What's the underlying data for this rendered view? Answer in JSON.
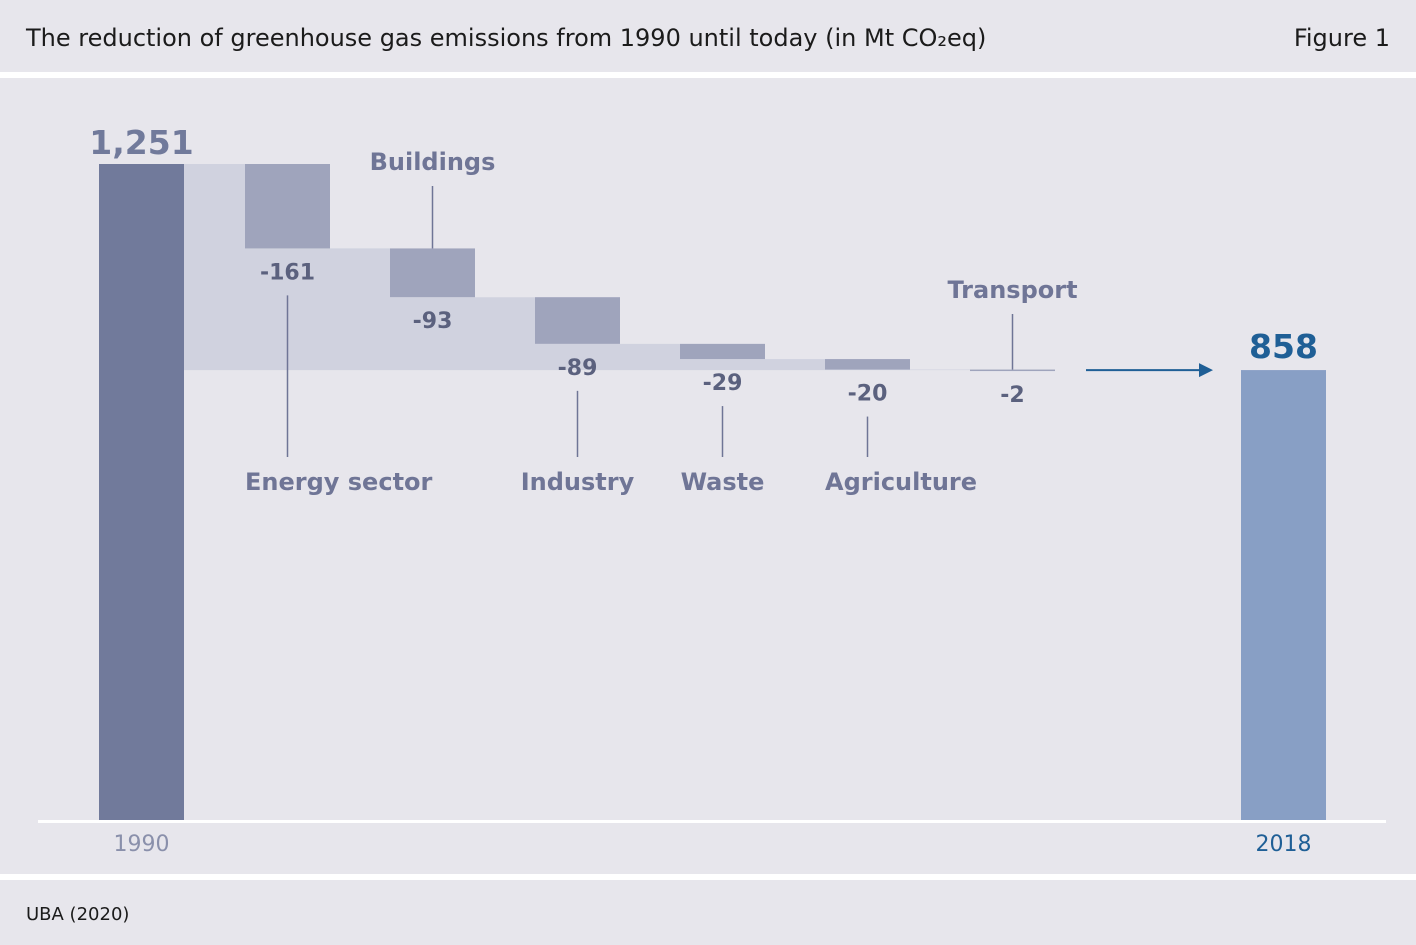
{
  "header": {
    "title": "The reduction of greenhouse gas emissions from 1990 until today (in Mt CO₂eq)",
    "figure_label": "Figure 1"
  },
  "footer": {
    "source": "UBA (2020)"
  },
  "colors": {
    "start_bar": "#717a9b",
    "end_bar": "#889fc5",
    "step_box": "#9fa4bc",
    "shadow": "#d0d2df",
    "label": "#6f7596",
    "value_label": "#5b617e",
    "accent": "#1f5f96",
    "axis_tick": "#8a90ab"
  },
  "chart_data": {
    "type": "bar",
    "subtype": "waterfall",
    "start": {
      "category": "1990",
      "value": 1251,
      "value_label": "1,251"
    },
    "end": {
      "category": "2018",
      "value": 858,
      "value_label": "858"
    },
    "steps": [
      {
        "name": "Energy sector",
        "value": -161,
        "value_label": "-161",
        "name_position": "below"
      },
      {
        "name": "Buildings",
        "value": -93,
        "value_label": "-93",
        "name_position": "above"
      },
      {
        "name": "Industry",
        "value": -89,
        "value_label": "-89",
        "name_position": "below"
      },
      {
        "name": "Waste",
        "value": -29,
        "value_label": "-29",
        "name_position": "below"
      },
      {
        "name": "Agriculture",
        "value": -20,
        "value_label": "-20",
        "name_position": "below"
      },
      {
        "name": "Transport",
        "value": -2,
        "value_label": "-2",
        "name_position": "above"
      }
    ],
    "ylim": [
      0,
      1251
    ],
    "xlabel": "",
    "ylabel": "",
    "grid": false
  }
}
